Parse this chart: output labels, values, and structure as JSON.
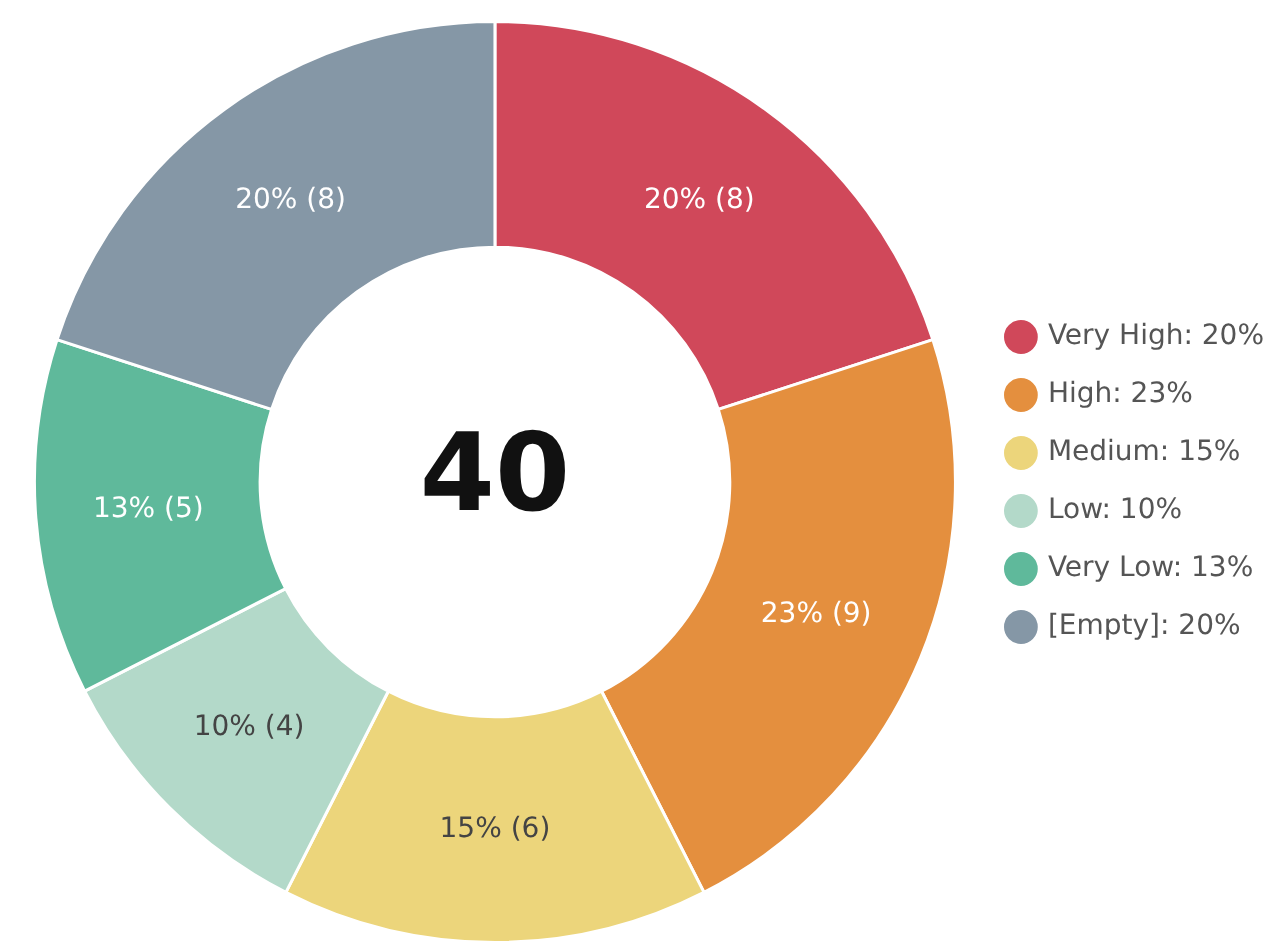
{
  "chart_data": {
    "type": "donut",
    "categories": [
      "Very High: 20%",
      "High: 23%",
      "Medium: 15%",
      "Low: 10%",
      "Very Low: 13%",
      "[Empty]: 20%"
    ],
    "values": [
      8,
      9,
      6,
      4,
      5,
      8
    ],
    "colors": [
      "#d0485a",
      "#e48f3e",
      "#ecd57b",
      "#b3d9c9",
      "#5fb99b",
      "#8597a6"
    ],
    "value_labels": [
      "20% (8)",
      "23% (9)",
      "15% (6)",
      "10% (4)",
      "13% (5)",
      "20% (8)"
    ],
    "annotations": [
      "40"
    ],
    "legend": "right"
  }
}
